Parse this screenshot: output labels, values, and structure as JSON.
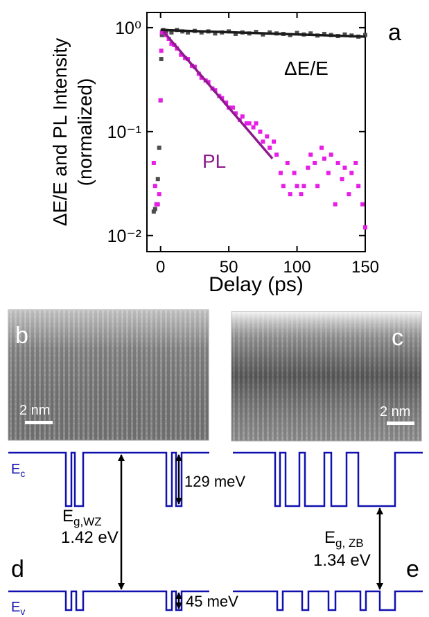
{
  "chart_data": {
    "type": "scatter",
    "panel_label": "a",
    "ylabel": [
      "ΔE/E and PL Intensity",
      "(normalized)"
    ],
    "xlabel": "Delay (ps)",
    "log_y": true,
    "xlim": [
      -10,
      150
    ],
    "xticks": [
      0,
      50,
      100,
      150
    ],
    "ylim": [
      0.007,
      1.4
    ],
    "yticks": [
      {
        "value": 0.01,
        "label": "10⁻²"
      },
      {
        "value": 0.1,
        "label": "10⁻¹"
      },
      {
        "value": 1,
        "label": "10⁰"
      }
    ],
    "series": [
      {
        "name": "ΔE/E",
        "color": "#4d4d4d",
        "x": [
          -5,
          -4,
          -3,
          -2,
          -1,
          0,
          0.5,
          1,
          2,
          4,
          8,
          12,
          16,
          20,
          25,
          30,
          35,
          40,
          45,
          50,
          55,
          60,
          65,
          70,
          75,
          80,
          85,
          90,
          95,
          100,
          105,
          110,
          115,
          120,
          125,
          130,
          135,
          140,
          145,
          150
        ],
        "values": [
          0.017,
          0.018,
          0.02,
          0.035,
          0.07,
          0.2,
          0.5,
          0.85,
          0.95,
          0.93,
          0.9,
          0.95,
          0.92,
          0.9,
          0.93,
          0.9,
          0.92,
          0.88,
          0.9,
          0.92,
          0.87,
          0.9,
          0.88,
          0.91,
          0.86,
          0.9,
          0.88,
          0.87,
          0.85,
          0.89,
          0.86,
          0.88,
          0.84,
          0.87,
          0.85,
          0.83,
          0.86,
          0.84,
          0.82,
          0.85
        ]
      },
      {
        "name": "PL",
        "color": "#e61ee6",
        "x": [
          -5,
          -4,
          -3,
          -2,
          -1,
          0,
          0.5,
          1,
          2,
          4,
          6,
          8,
          10,
          12,
          15,
          18,
          20,
          23,
          25,
          28,
          30,
          33,
          35,
          38,
          40,
          43,
          45,
          48,
          50,
          53,
          55,
          58,
          60,
          63,
          65,
          68,
          70,
          73,
          75,
          78,
          80,
          83,
          85,
          88,
          90,
          93,
          95,
          98,
          100,
          103,
          105,
          108,
          110,
          113,
          115,
          118,
          120,
          123,
          125,
          128,
          130,
          133,
          135,
          138,
          140,
          143,
          145,
          148,
          150
        ],
        "values": [
          0.05,
          0.03,
          0.02,
          0.02,
          0.025,
          0.2,
          0.6,
          0.9,
          0.92,
          0.85,
          0.78,
          0.7,
          0.68,
          0.63,
          0.55,
          0.51,
          0.5,
          0.43,
          0.42,
          0.36,
          0.33,
          0.31,
          0.3,
          0.26,
          0.25,
          0.22,
          0.21,
          0.19,
          0.17,
          0.17,
          0.15,
          0.13,
          0.14,
          0.12,
          0.12,
          0.11,
          0.12,
          0.1,
          0.08,
          0.09,
          0.07,
          0.08,
          0.06,
          0.04,
          0.03,
          0.05,
          0.025,
          0.04,
          0.03,
          0.025,
          0.03,
          0.045,
          0.06,
          0.05,
          0.03,
          0.07,
          0.055,
          0.04,
          0.06,
          0.02,
          0.05,
          0.035,
          0.045,
          0.025,
          0.04,
          0.05,
          0.03,
          0.02,
          0.012
        ]
      }
    ],
    "fits": [
      {
        "color": "#1a1a1a",
        "x": [
          0,
          150
        ],
        "values": [
          0.95,
          0.82
        ]
      },
      {
        "color": "#8e1a8e",
        "x": [
          2,
          82
        ],
        "values": [
          0.92,
          0.055
        ]
      }
    ]
  },
  "images": [
    {
      "label": "b",
      "scale": "2 nm"
    },
    {
      "label": "c",
      "scale": "2 nm"
    }
  ],
  "band_diagrams": {
    "ec": {
      "symbol": "E",
      "sub": "c"
    },
    "ev": {
      "symbol": "E",
      "sub": "v"
    },
    "wz": {
      "label": "d",
      "symbol": "E",
      "sub": "g,WZ",
      "value": "1.42 eV"
    },
    "zb": {
      "label": "e",
      "symbol": "E",
      "sub": "g, ZB",
      "value": "1.34 eV"
    },
    "cb_offset": "129 meV",
    "vb_offset": "45 meV"
  }
}
